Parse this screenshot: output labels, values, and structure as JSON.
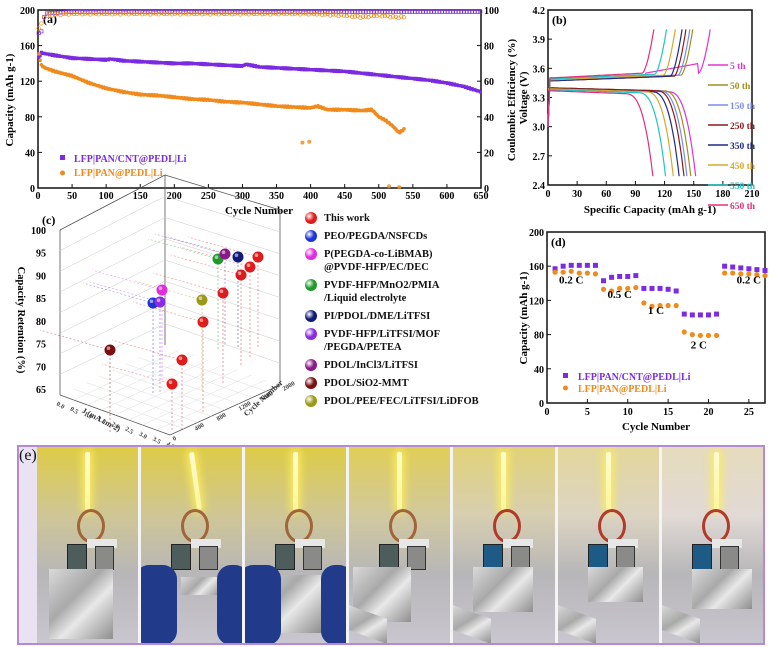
{
  "figure": {
    "panel_labels": [
      "(a)",
      "(b)",
      "(c)",
      "(d)",
      "(e)"
    ],
    "colors": {
      "purple": "#7b2be0",
      "orange": "#f08a1c",
      "photo_border": "#b48ad6"
    }
  },
  "chart_data": [
    {
      "panel": "(a)",
      "type": "scatter",
      "title": "",
      "xlabel": "Cycle Number",
      "ylabel": "Capacity (mAh g-1)",
      "y2label": "Coulombic Efficiency (%)",
      "xlim": [
        0,
        650
      ],
      "ylim": [
        0,
        200
      ],
      "y2lim": [
        0,
        100
      ],
      "xticks": [
        "0",
        "50",
        "100",
        "150",
        "200",
        "250",
        "300",
        "350",
        "400",
        "450",
        "500",
        "550",
        "600",
        "650"
      ],
      "yticks": [
        "0",
        "40",
        "80",
        "120",
        "160",
        "200"
      ],
      "y2ticks": [
        "0",
        "20",
        "40",
        "60",
        "80",
        "100"
      ],
      "legend_position": "bottom-left",
      "series": [
        {
          "name": "LFP|PAN/CNT@PEDL|Li",
          "color": "#7b2be0",
          "marker": "square",
          "kind": "capacity",
          "x": [
            1,
            5,
            10,
            25,
            50,
            75,
            100,
            107,
            125,
            150,
            175,
            200,
            225,
            250,
            275,
            300,
            305,
            325,
            350,
            375,
            400,
            425,
            450,
            475,
            500,
            525,
            550,
            575,
            600,
            625,
            650
          ],
          "y": [
            146,
            152,
            151,
            149,
            146,
            145,
            144,
            145,
            143,
            142,
            141,
            140,
            140,
            139,
            138,
            137,
            139,
            136,
            135,
            134,
            133,
            132,
            131,
            129,
            127,
            125,
            123,
            121,
            118,
            114,
            108
          ]
        },
        {
          "name": "LFP|PAN@PEDL|Li",
          "color": "#f08a1c",
          "marker": "circle",
          "kind": "capacity",
          "x": [
            1,
            5,
            10,
            25,
            50,
            75,
            100,
            125,
            150,
            175,
            200,
            225,
            250,
            275,
            300,
            325,
            350,
            375,
            400,
            410,
            425,
            450,
            475,
            490,
            500,
            510,
            520,
            530,
            537
          ],
          "y": [
            150,
            138,
            135,
            131,
            126,
            118,
            112,
            108,
            105,
            104,
            102,
            100,
            99,
            97,
            96,
            94,
            92,
            91,
            90,
            92,
            88,
            88,
            87,
            88,
            80,
            76,
            70,
            62,
            66
          ]
        },
        {
          "name": "LFP|PAN/CNT@PEDL|Li CE",
          "color": "#7b2be0",
          "marker": "open-square",
          "kind": "ce",
          "x": [
            1,
            5,
            10,
            50,
            100,
            150,
            200,
            250,
            300,
            350,
            400,
            450,
            500,
            550,
            600,
            650
          ],
          "y": [
            87,
            88,
            98,
            99,
            99,
            99,
            99,
            99,
            99,
            99,
            99,
            99,
            99,
            99,
            99,
            99
          ]
        },
        {
          "name": "LFP|PAN@PEDL|Li CE",
          "color": "#f08a1c",
          "marker": "open-circle",
          "kind": "ce",
          "x": [
            1,
            5,
            10,
            50,
            100,
            150,
            200,
            250,
            300,
            350,
            400,
            450,
            475,
            500,
            525,
            537
          ],
          "y": [
            90,
            92,
            97,
            98,
            98,
            98,
            98,
            98,
            98,
            98,
            98,
            97,
            96,
            97,
            96,
            96
          ]
        },
        {
          "name": "LFP|PAN@PEDL|Li outliers",
          "color": "#f08a1c",
          "marker": "circle",
          "kind": "capacity",
          "x": [
            388,
            398,
            515,
            530
          ],
          "y": [
            51,
            52,
            2,
            1
          ]
        }
      ]
    },
    {
      "panel": "(b)",
      "type": "line",
      "xlabel": "Specific Capacity (mAh g-1)",
      "ylabel": "Voltage (V)",
      "xlim": [
        0,
        210
      ],
      "ylim": [
        2.4,
        4.2
      ],
      "xticks": [
        "0",
        "30",
        "60",
        "90",
        "120",
        "150",
        "180",
        "210"
      ],
      "yticks": [
        "2.4",
        "2.7",
        "3.0",
        "3.3",
        "3.6",
        "3.9",
        "4.2"
      ],
      "legend_position": "right",
      "series": [
        {
          "name": "5 th",
          "color": "#e033d6",
          "charge_end": 167,
          "discharge_end": 152,
          "plateau_charge": 3.5,
          "plateau_discharge": 3.37
        },
        {
          "name": "50 th",
          "color": "#a09020",
          "charge_end": 149,
          "discharge_end": 147,
          "plateau_charge": 3.48,
          "plateau_discharge": 3.38
        },
        {
          "name": "150 th",
          "color": "#7a8cf0",
          "charge_end": 146,
          "discharge_end": 143,
          "plateau_charge": 3.48,
          "plateau_discharge": 3.38
        },
        {
          "name": "250 th",
          "color": "#8b1a1a",
          "charge_end": 142,
          "discharge_end": 140,
          "plateau_charge": 3.47,
          "plateau_discharge": 3.38
        },
        {
          "name": "350 th",
          "color": "#1f2a8a",
          "charge_end": 138,
          "discharge_end": 135,
          "plateau_charge": 3.47,
          "plateau_discharge": 3.37
        },
        {
          "name": "450 th",
          "color": "#d9a72a",
          "charge_end": 131,
          "discharge_end": 129,
          "plateau_charge": 3.48,
          "plateau_discharge": 3.37
        },
        {
          "name": "550 th",
          "color": "#20c4c4",
          "charge_end": 122,
          "discharge_end": 121,
          "plateau_charge": 3.49,
          "plateau_discharge": 3.36
        },
        {
          "name": "650 th",
          "color": "#e0307a",
          "charge_end": 109,
          "discharge_end": 108,
          "plateau_charge": 3.5,
          "plateau_discharge": 3.35
        }
      ]
    },
    {
      "panel": "(c)",
      "type": "scatter",
      "xlabel": "J (mA cm-2)",
      "ylabel": "Capacity Retention (%)",
      "zlabel": "Cycle Number",
      "ylim": [
        65,
        100
      ],
      "yticks": [
        "65",
        "70",
        "75",
        "80",
        "85",
        "90",
        "95",
        "100"
      ],
      "xticks": [
        "0.0",
        "0.5",
        "1.0",
        "1.5",
        "2.0",
        "2.5",
        "3.0",
        "3.5",
        "4.0"
      ],
      "zticks": [
        "0",
        "400",
        "800",
        "1200",
        "1600",
        "2000"
      ],
      "legend_position": "right",
      "legend": [
        {
          "label": "This work",
          "color": "#e11b1b"
        },
        {
          "label": "PEO/PEGDA/NSFCDs",
          "color": "#1c33d6"
        },
        {
          "label": "P(PEGDA-co-LiBMAB)",
          "label2": "@PVDF-HFP/EC/DEC",
          "color": "#e02ce0"
        },
        {
          "label": "PVDF-HFP/MnO2/PMIA",
          "label2": "/Liquid electrolyte",
          "color": "#1f9a2a"
        },
        {
          "label": "PI/PDOL/DME/LiTFSI",
          "color": "#101a78"
        },
        {
          "label": "PVDF-HFP/LiTFSI/MOF",
          "label2": "/PEGDA/PETEA",
          "color": "#8a2be2"
        },
        {
          "label": "PDOL/InCl3/LiTFSI",
          "color": "#8a1a8a"
        },
        {
          "label": "PDOL/SiO2-MMT",
          "color": "#7a0f0f"
        },
        {
          "label": "PDOL/PEE/FEC/LiTFSI/LiDFOB",
          "color": "#9a9a18"
        }
      ],
      "points": [
        {
          "series": "This work",
          "retention": 93,
          "color": "#e11b1b"
        },
        {
          "series": "This work",
          "retention": 91,
          "color": "#e11b1b"
        },
        {
          "series": "This work",
          "retention": 89,
          "color": "#e11b1b"
        },
        {
          "series": "This work",
          "retention": 85,
          "color": "#e11b1b"
        },
        {
          "series": "This work",
          "retention": 80,
          "color": "#e11b1b"
        },
        {
          "series": "This work",
          "retention": 70,
          "color": "#e11b1b"
        },
        {
          "series": "This work",
          "retention": 66,
          "color": "#e11b1b"
        },
        {
          "series": "PEO/PEGDA/NSFCDs",
          "retention": 83,
          "color": "#1c33d6"
        },
        {
          "series": "P(PEGDA-co-LiBMAB)@PVDF-HFP/EC/DEC",
          "retention": 86,
          "color": "#e02ce0"
        },
        {
          "series": "PVDF-HFP/MnO2/PMIA/Liquid electrolyte",
          "retention": 93,
          "color": "#1f9a2a"
        },
        {
          "series": "PI/PDOL/DME/LiTFSI",
          "retention": 94,
          "color": "#101a78"
        },
        {
          "series": "PVDF-HFP/LiTFSI/MOF/PEGDA/PETEA",
          "retention": 83,
          "color": "#8a2be2"
        },
        {
          "series": "PDOL/InCl3/LiTFSI",
          "retention": 94,
          "color": "#8a1a8a"
        },
        {
          "series": "PDOL/SiO2-MMT",
          "retention": 72,
          "color": "#7a0f0f"
        },
        {
          "series": "PDOL/PEE/FEC/LiTFSI/LiDFOB",
          "retention": 84,
          "color": "#9a9a18"
        }
      ]
    },
    {
      "panel": "(d)",
      "type": "scatter",
      "xlabel": "Cycle Number",
      "ylabel": "Capacity (mAh g-1)",
      "xlim": [
        0,
        27
      ],
      "ylim": [
        0,
        200
      ],
      "xticks": [
        "0",
        "5",
        "10",
        "15",
        "20",
        "25"
      ],
      "yticks": [
        "0",
        "40",
        "80",
        "120",
        "160",
        "200"
      ],
      "legend_position": "bottom-left",
      "annotations": [
        "0.2 C",
        "0.5 C",
        "1 C",
        "2 C",
        "0.2 C"
      ],
      "series": [
        {
          "name": "LFP|PAN/CNT@PEDL|Li",
          "color": "#7b2be0",
          "marker": "square",
          "x": [
            1,
            2,
            3,
            4,
            5,
            6,
            7,
            8,
            9,
            10,
            11,
            12,
            13,
            14,
            15,
            16,
            17,
            18,
            19,
            20,
            21,
            22,
            23,
            24,
            25,
            26,
            27
          ],
          "y": [
            157,
            160,
            161,
            161,
            161,
            161,
            143,
            147,
            148,
            148,
            149,
            134,
            134,
            134,
            133,
            131,
            104,
            103,
            103,
            103,
            104,
            160,
            159,
            158,
            157,
            156,
            155
          ]
        },
        {
          "name": "LFP|PAN@PEDL|Li",
          "color": "#f08a1c",
          "marker": "circle",
          "x": [
            1,
            2,
            3,
            4,
            5,
            6,
            7,
            8,
            9,
            10,
            11,
            12,
            13,
            14,
            15,
            16,
            17,
            18,
            19,
            20,
            21,
            22,
            23,
            24,
            25,
            26,
            27
          ],
          "y": [
            153,
            153,
            154,
            152,
            152,
            151,
            133,
            131,
            134,
            134,
            135,
            117,
            113,
            114,
            114,
            114,
            83,
            80,
            79,
            79,
            79,
            152,
            152,
            151,
            151,
            150,
            149
          ]
        }
      ]
    }
  ],
  "photos": {
    "count": 7,
    "label": "(e)"
  }
}
